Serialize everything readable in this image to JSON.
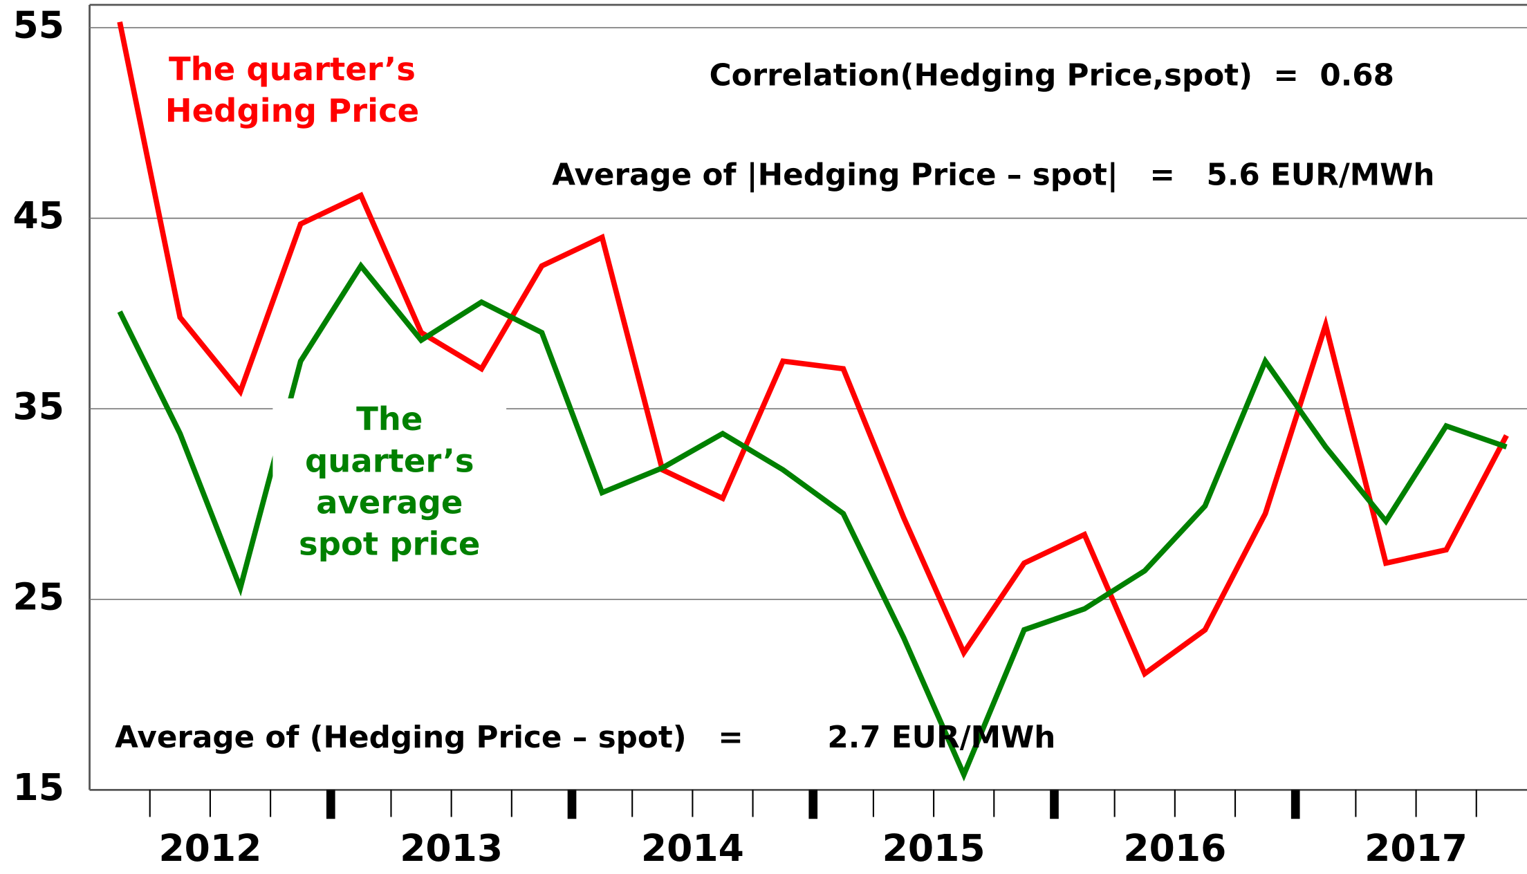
{
  "chart_data": {
    "type": "line",
    "x": [
      2012.125,
      2012.375,
      2012.625,
      2012.875,
      2013.125,
      2013.375,
      2013.625,
      2013.875,
      2014.125,
      2014.375,
      2014.625,
      2014.875,
      2015.125,
      2015.375,
      2015.625,
      2015.875,
      2016.125,
      2016.375,
      2016.625,
      2016.875,
      2017.125,
      2017.375,
      2017.625,
      2017.875
    ],
    "series": [
      {
        "name": "The quarter’s Hedging Price",
        "color": "#ff0000",
        "values": [
          55.3,
          39.8,
          35.9,
          44.7,
          46.2,
          39.0,
          37.1,
          42.5,
          44.0,
          31.8,
          30.3,
          37.5,
          37.1,
          29.3,
          22.2,
          26.9,
          28.4,
          21.1,
          23.4,
          29.5,
          39.4,
          26.9,
          27.6,
          33.6
        ]
      },
      {
        "name": "The quarter’s average spot price",
        "color": "#008000",
        "values": [
          40.1,
          33.7,
          25.6,
          37.5,
          42.5,
          38.6,
          40.6,
          39.0,
          30.6,
          31.9,
          33.7,
          31.8,
          29.5,
          23.0,
          15.8,
          23.4,
          24.5,
          26.5,
          29.9,
          37.5,
          33.0,
          29.1,
          34.1,
          33.0
        ]
      }
    ],
    "xlim": [
      2012,
      2017.96
    ],
    "xticks": [
      {
        "value": 2012.5,
        "label": "2012"
      },
      {
        "value": 2013.5,
        "label": "2013"
      },
      {
        "value": 2014.5,
        "label": "2014"
      },
      {
        "value": 2015.5,
        "label": "2015"
      },
      {
        "value": 2016.5,
        "label": "2016"
      },
      {
        "value": 2017.5,
        "label": "2017"
      }
    ],
    "ylim": [
      15,
      56.2
    ],
    "yticks": [
      15,
      25,
      35,
      45,
      55
    ],
    "grid": true,
    "annotations": [
      "Correlation(Hedging Price,spot)  =  0.68",
      "Average of |Hedging Price – spot|   =   5.6 EUR/MWh",
      "Average of (Hedging Price – spot)   =        2.7 EUR/MWh"
    ]
  }
}
